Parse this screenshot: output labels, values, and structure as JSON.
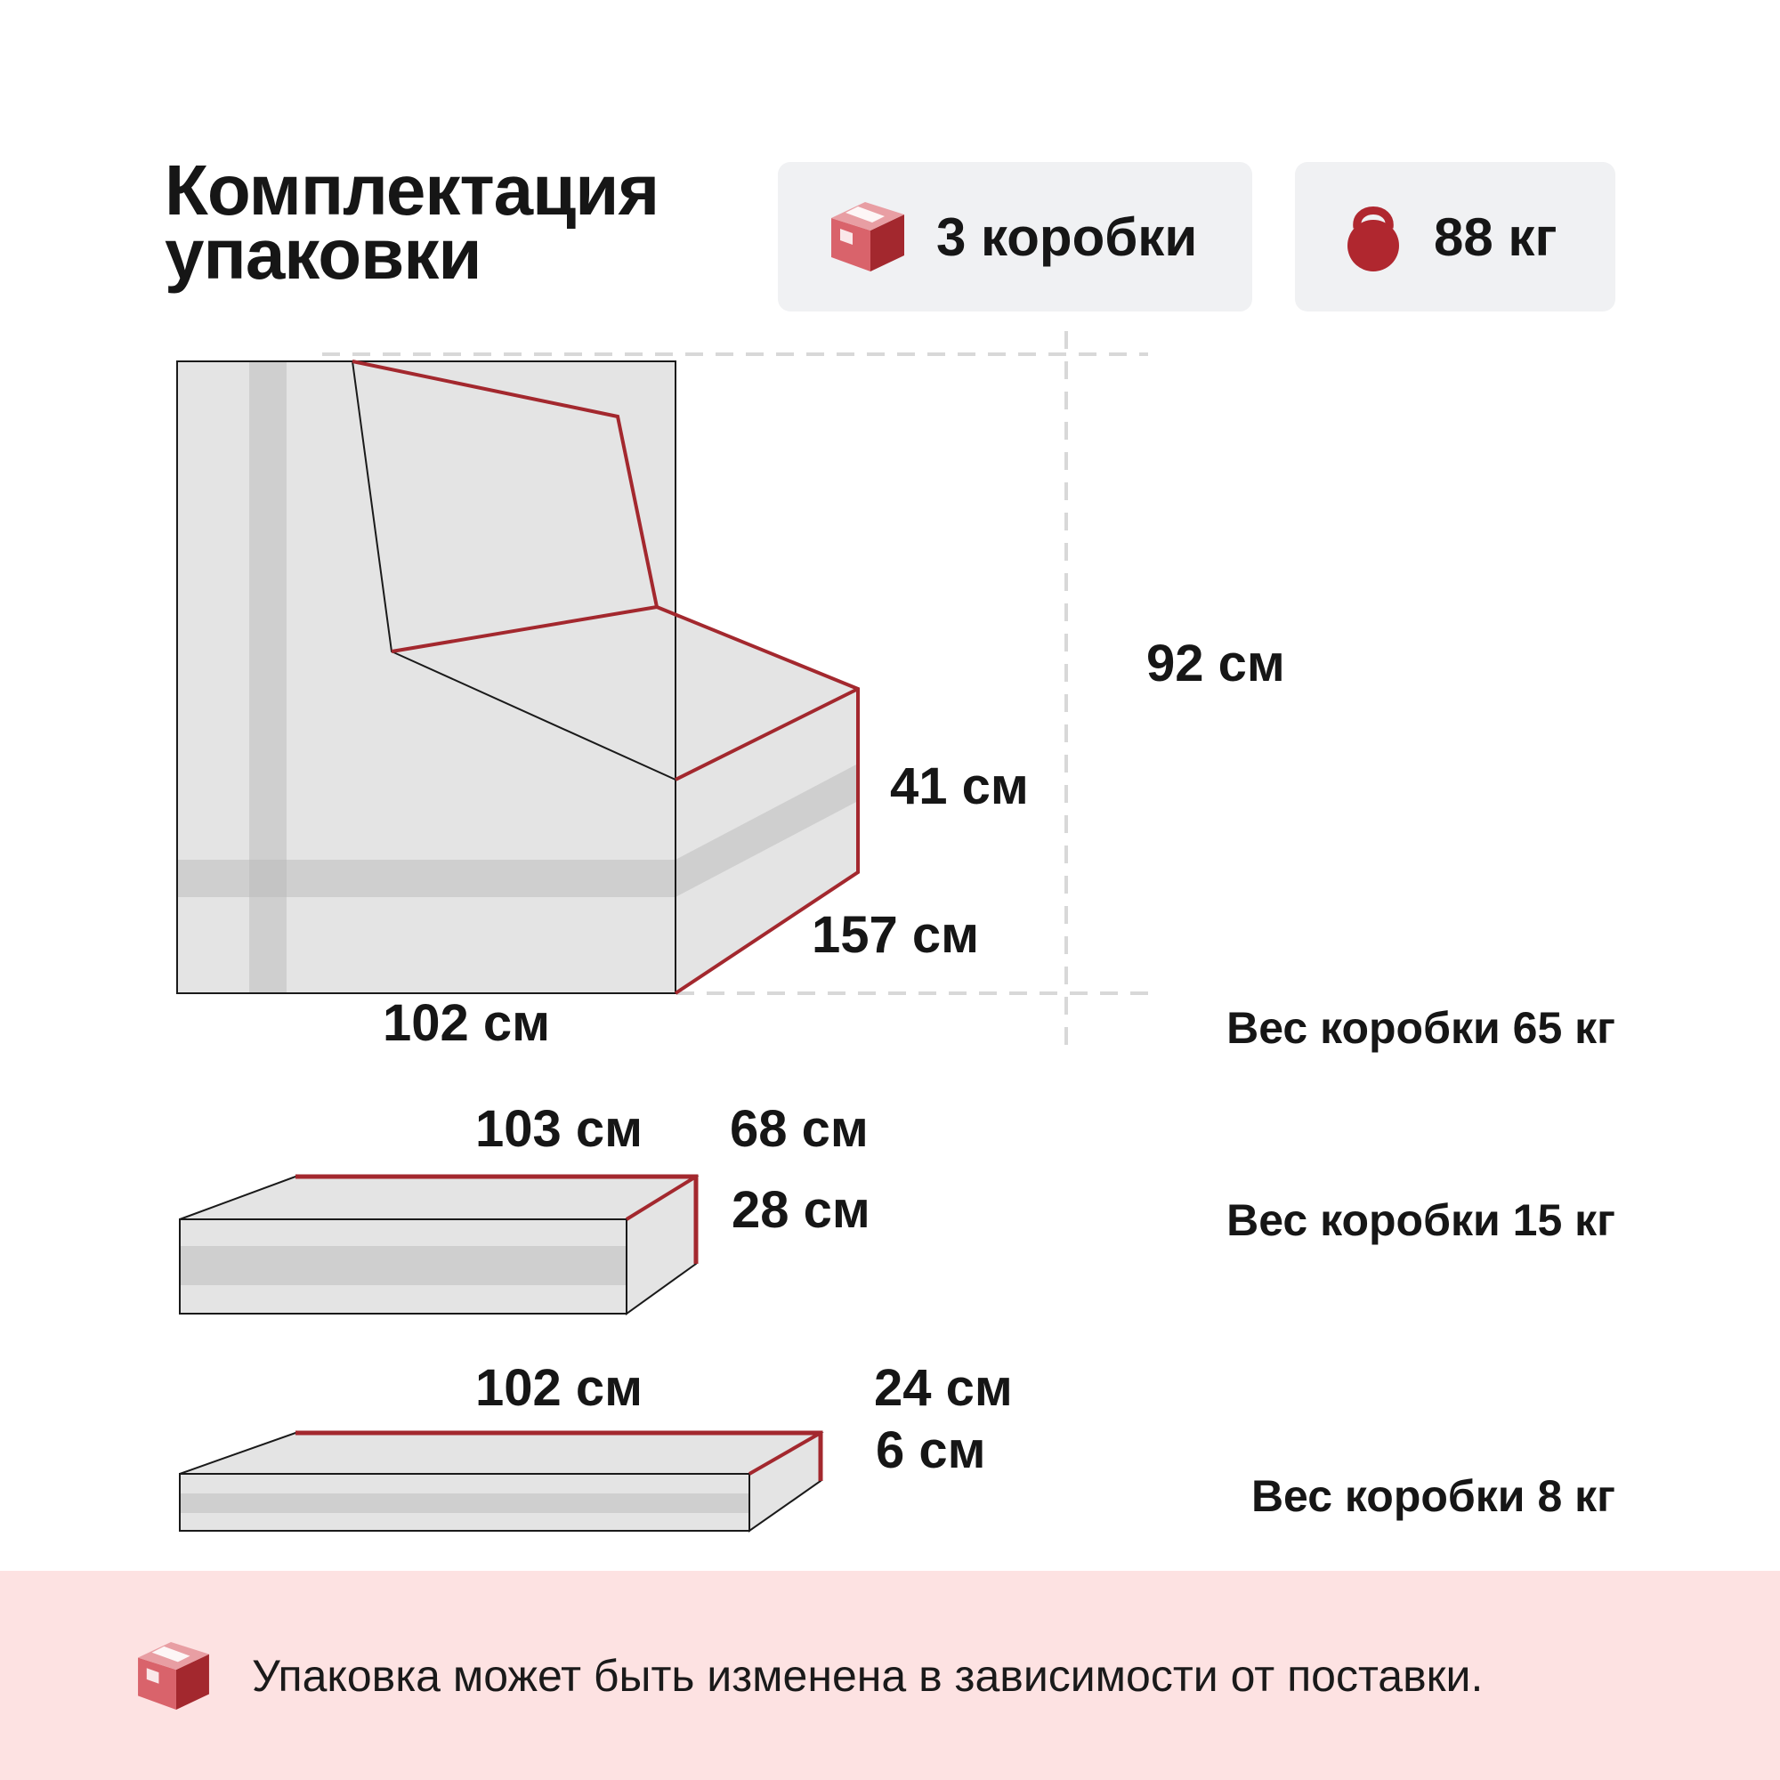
{
  "title": {
    "line1": "Комплектация",
    "line2": "упаковки"
  },
  "badges": {
    "boxes": {
      "icon": "package-box-icon",
      "label": "3 коробки"
    },
    "weight": {
      "icon": "kettlebell-icon",
      "label": "88 кг"
    }
  },
  "box1": {
    "width": "102 см",
    "depth": "157 см",
    "seat_height": "41 см",
    "total_height": "92 см",
    "weight": "Вес коробки 65 кг"
  },
  "box2": {
    "length": "103 см",
    "depth": "68 см",
    "height": "28 см",
    "weight": "Вес коробки 15 кг"
  },
  "box3": {
    "length": "102 см",
    "depth": "24 см",
    "height": "6 см",
    "weight": "Вес коробки 8 кг"
  },
  "footer": {
    "icon": "package-box-icon",
    "note": "Упаковка может быть изменена в зависимости от поставки."
  },
  "colors": {
    "accent": "#a3282e",
    "box_fill": "#e4e4e4",
    "tape": "#cccccc",
    "pill_bg": "#f0f1f3",
    "footer_bg": "#fde2e2"
  }
}
